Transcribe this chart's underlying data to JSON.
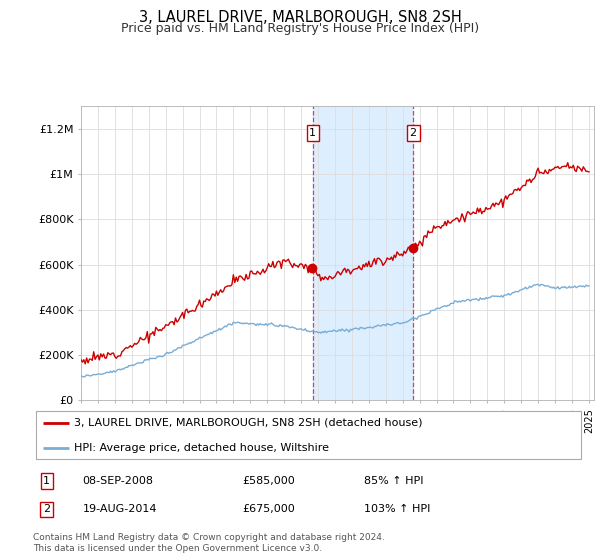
{
  "title": "3, LAUREL DRIVE, MARLBOROUGH, SN8 2SH",
  "subtitle": "Price paid vs. HM Land Registry's House Price Index (HPI)",
  "legend_line1": "3, LAUREL DRIVE, MARLBOROUGH, SN8 2SH (detached house)",
  "legend_line2": "HPI: Average price, detached house, Wiltshire",
  "event1_date": "08-SEP-2008",
  "event1_price": "£585,000",
  "event1_hpi": "85% ↑ HPI",
  "event2_date": "19-AUG-2014",
  "event2_price": "£675,000",
  "event2_hpi": "103% ↑ HPI",
  "footer": "Contains HM Land Registry data © Crown copyright and database right 2024.\nThis data is licensed under the Open Government Licence v3.0.",
  "line1_color": "#cc0000",
  "line2_color": "#7aadd4",
  "event_color": "#cc0000",
  "shade_color": "#ddeeff",
  "bg_color": "#f8f8f8",
  "ylim": [
    0,
    1300000
  ],
  "yticks": [
    0,
    200000,
    400000,
    600000,
    800000,
    1000000,
    1200000
  ],
  "ytick_labels": [
    "£0",
    "£200K",
    "£400K",
    "£600K",
    "£800K",
    "£1M",
    "£1.2M"
  ],
  "event1_year": 2008.69,
  "event2_year": 2014.62,
  "event1_val": 585000,
  "event2_val": 675000
}
